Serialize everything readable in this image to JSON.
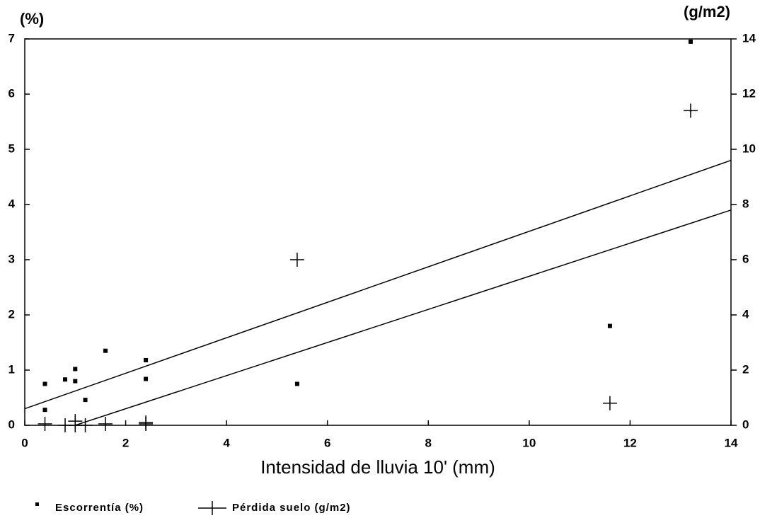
{
  "chart_data": {
    "type": "scatter",
    "x_label": "Intensidad de lluvia 10' (mm)",
    "y_label": "(%)",
    "y2_label": "(g/m2)",
    "xlim": [
      0,
      14
    ],
    "xticks": [
      0,
      2,
      4,
      6,
      8,
      10,
      12,
      14
    ],
    "ylim": [
      0,
      7
    ],
    "yticks": [
      0,
      1,
      2,
      3,
      4,
      5,
      6,
      7
    ],
    "y2lim": [
      0,
      14
    ],
    "y2ticks": [
      0,
      2,
      4,
      6,
      8,
      10,
      12,
      14
    ],
    "legend": "bottom",
    "series": [
      {
        "name": "Escorrentía (%)",
        "color": "#000000",
        "marker": "square",
        "x": [
          0.4,
          0.4,
          0.8,
          1.0,
          1.0,
          1.2,
          1.6,
          2.4,
          2.4,
          5.4,
          11.6,
          13.2
        ],
        "values": [
          0.75,
          0.28,
          0.83,
          1.02,
          0.8,
          0.46,
          1.35,
          1.18,
          0.84,
          0.75,
          1.8,
          6.95
        ]
      },
      {
        "name": "Pérdida suelo (g/m2)",
        "color": "#000000",
        "marker": "plus",
        "axis": "y2",
        "x": [
          0.4,
          0.8,
          1.0,
          1.0,
          1.2,
          1.6,
          2.4,
          2.4,
          5.4,
          11.6,
          13.2
        ],
        "values": [
          0.05,
          0,
          0.15,
          0,
          0,
          0.05,
          0.1,
          0.05,
          6.0,
          0.8,
          11.4
        ]
      }
    ],
    "lines": [
      {
        "color": "#000000",
        "x": [
          0,
          14
        ],
        "values": [
          0.3,
          4.8
        ]
      },
      {
        "color": "#000000",
        "x": [
          1,
          14
        ],
        "values": [
          0,
          3.9
        ]
      }
    ]
  }
}
